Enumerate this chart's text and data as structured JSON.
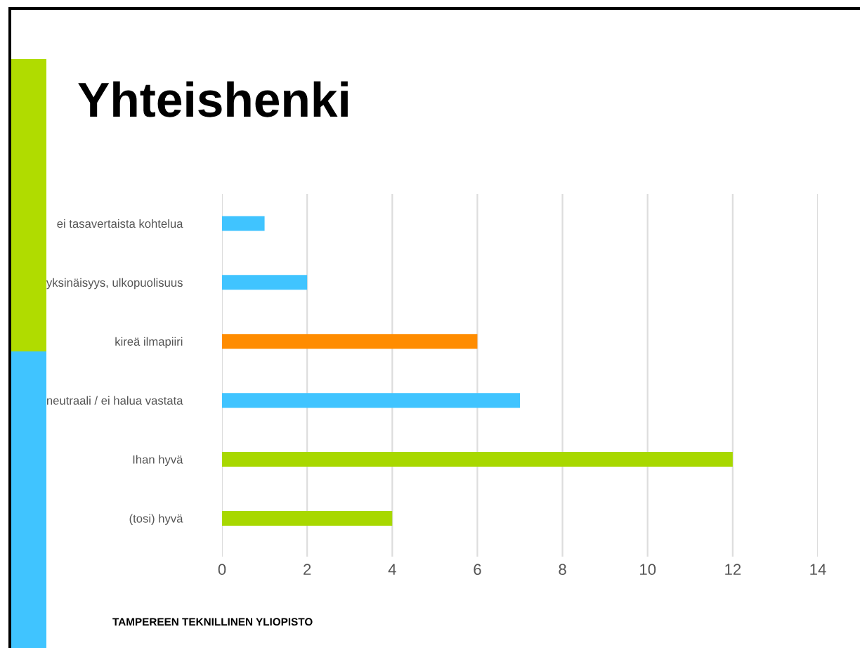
{
  "chart_data": {
    "type": "bar",
    "orientation": "horizontal",
    "title": "Yhteishenki",
    "categories": [
      "ei tasavertaista kohtelua",
      "yksinäisyys, ulkopuolisuus",
      "kireä ilmapiiri",
      "neutraali / ei halua vastata",
      "Ihan hyvä",
      "(tosi) hyvä"
    ],
    "values": [
      1,
      2,
      6,
      7,
      12,
      4
    ],
    "colors": [
      "#40c4ff",
      "#40c4ff",
      "#ff8c00",
      "#40c4ff",
      "#a8d800",
      "#a8d800"
    ],
    "xlim": [
      0,
      14
    ],
    "xticks": [
      0,
      2,
      4,
      6,
      8,
      10,
      12,
      14
    ],
    "grid": "x",
    "annotations": [
      "TAMPEREEN TEKNILLINEN YLIOPISTO"
    ]
  }
}
